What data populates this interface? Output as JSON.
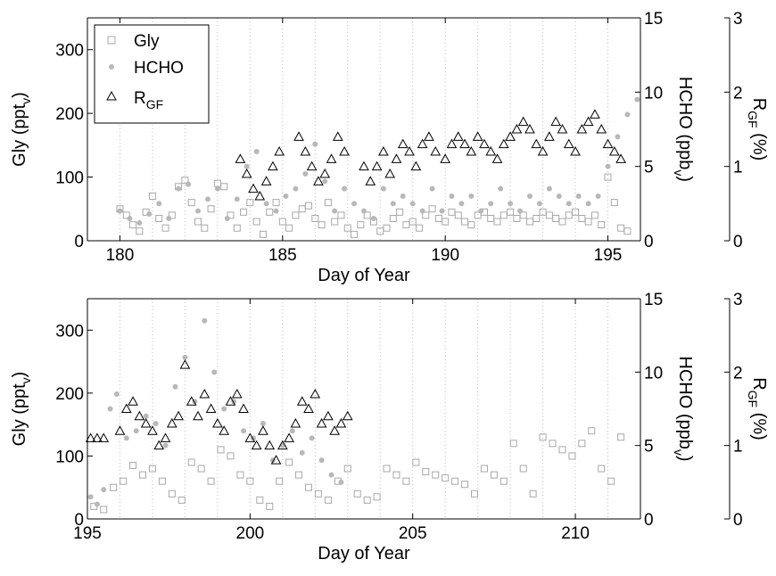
{
  "chart_data": [
    {
      "type": "scatter",
      "xlabel": "Day of Year",
      "ylabel_left": "Gly (ppt",
      "ylabel_left_sub": "v",
      "ylabel_left_close": ")",
      "ylabel_right1": "HCHO (ppb",
      "ylabel_right1_sub": "v",
      "ylabel_right1_close": ")",
      "ylabel_right2": "R",
      "ylabel_right2_sub": "GF",
      "ylabel_right2_close": " (%)",
      "xlim": [
        179,
        196
      ],
      "xticks": [
        "180",
        "185",
        "190",
        "195"
      ],
      "ylim_left": [
        0,
        350
      ],
      "yticks_left": [
        "0",
        "100",
        "200",
        "300"
      ],
      "ylim_right1": [
        0,
        15
      ],
      "yticks_right1": [
        "0",
        "5",
        "10",
        "15"
      ],
      "ylim_right2": [
        0,
        3
      ],
      "yticks_right2": [
        "0",
        "1",
        "2",
        "3"
      ],
      "dotted_day_lines": true,
      "legend": {
        "placement": "top-left",
        "entries": [
          {
            "label": "Gly",
            "marker": "square",
            "color": "#a8a8a8"
          },
          {
            "label": "HCHO",
            "marker": "dot",
            "color": "#b8b8b8"
          },
          {
            "label": "R",
            "label_sub": "GF",
            "marker": "triangle",
            "color": "#000000"
          }
        ]
      },
      "series": [
        {
          "name": "Gly",
          "axis": "left",
          "x": [
            180.0,
            180.2,
            180.4,
            180.6,
            180.8,
            181.0,
            181.2,
            181.4,
            181.6,
            181.8,
            182.0,
            182.2,
            182.4,
            182.6,
            182.8,
            183.0,
            183.2,
            183.4,
            183.6,
            183.8,
            184.0,
            184.2,
            184.4,
            184.6,
            184.8,
            185.0,
            185.2,
            185.4,
            185.6,
            185.8,
            186.0,
            186.2,
            186.4,
            186.6,
            186.8,
            187.0,
            187.2,
            187.4,
            187.6,
            187.8,
            188.0,
            188.2,
            188.4,
            188.6,
            188.8,
            189.0,
            189.2,
            189.4,
            189.6,
            189.8,
            190.0,
            190.2,
            190.4,
            190.6,
            190.8,
            191.0,
            191.2,
            191.4,
            191.6,
            191.8,
            192.0,
            192.2,
            192.4,
            192.6,
            192.8,
            193.0,
            193.2,
            193.4,
            193.6,
            193.8,
            194.0,
            194.2,
            194.4,
            194.6,
            194.8,
            195.0,
            195.2,
            195.4,
            195.6
          ],
          "y": [
            50,
            40,
            25,
            15,
            45,
            70,
            35,
            20,
            40,
            85,
            95,
            60,
            30,
            20,
            50,
            90,
            85,
            40,
            20,
            45,
            60,
            30,
            10,
            45,
            60,
            30,
            20,
            40,
            50,
            55,
            35,
            25,
            60,
            30,
            40,
            20,
            10,
            25,
            40,
            30,
            15,
            20,
            35,
            45,
            25,
            30,
            20,
            40,
            50,
            35,
            30,
            45,
            40,
            30,
            25,
            40,
            45,
            35,
            30,
            40,
            45,
            35,
            40,
            30,
            35,
            45,
            40,
            35,
            30,
            40,
            45,
            35,
            30,
            40,
            25,
            100,
            60,
            20,
            15
          ]
        },
        {
          "name": "HCHO",
          "axis": "right1",
          "x": [
            180.0,
            180.3,
            180.6,
            180.9,
            181.2,
            181.5,
            181.8,
            182.1,
            182.4,
            182.7,
            183.0,
            183.3,
            183.6,
            183.9,
            184.2,
            184.5,
            184.8,
            185.1,
            185.4,
            185.7,
            186.0,
            186.3,
            186.6,
            186.9,
            187.2,
            187.5,
            187.8,
            188.1,
            188.4,
            188.7,
            189.0,
            189.3,
            189.6,
            189.9,
            190.2,
            190.5,
            190.8,
            191.1,
            191.4,
            191.7,
            192.0,
            192.3,
            192.6,
            192.9,
            193.2,
            193.5,
            193.8,
            194.1,
            194.4,
            194.7,
            195.0,
            195.3,
            195.6,
            195.9
          ],
          "y": [
            2.0,
            1.5,
            1.2,
            1.8,
            2.5,
            1.5,
            3.5,
            3.8,
            2.0,
            2.8,
            3.5,
            1.5,
            2.8,
            5.0,
            6.0,
            2.5,
            2.0,
            3.0,
            3.5,
            4.5,
            6.5,
            4.0,
            2.0,
            3.5,
            2.5,
            2.0,
            1.5,
            3.5,
            2.5,
            3.0,
            2.5,
            2.0,
            3.5,
            2.0,
            3.0,
            2.5,
            3.0,
            2.0,
            2.5,
            3.5,
            2.5,
            2.0,
            3.0,
            2.5,
            3.5,
            3.0,
            2.5,
            3.0,
            2.5,
            3.0,
            5.0,
            7.0,
            8.5,
            9.5
          ]
        },
        {
          "name": "R",
          "axis": "right2",
          "x": [
            183.7,
            183.9,
            184.1,
            184.3,
            184.5,
            184.7,
            184.9,
            185.5,
            185.7,
            185.9,
            186.1,
            186.3,
            186.5,
            186.7,
            186.9,
            187.5,
            187.7,
            187.9,
            188.1,
            188.3,
            188.5,
            188.7,
            188.9,
            189.1,
            189.3,
            189.5,
            189.7,
            190.0,
            190.2,
            190.4,
            190.6,
            190.8,
            191.0,
            191.2,
            191.4,
            191.6,
            191.8,
            192.0,
            192.2,
            192.4,
            192.6,
            192.8,
            193.0,
            193.2,
            193.4,
            193.6,
            193.8,
            194.0,
            194.2,
            194.4,
            194.6,
            194.8,
            195.0,
            195.2,
            195.4
          ],
          "y": [
            1.1,
            0.9,
            0.7,
            0.6,
            0.8,
            1.0,
            1.2,
            1.4,
            1.2,
            1.0,
            0.8,
            0.9,
            1.1,
            1.4,
            1.2,
            1.0,
            0.8,
            1.0,
            1.2,
            0.9,
            1.1,
            1.3,
            1.2,
            1.0,
            1.3,
            1.4,
            1.2,
            1.1,
            1.3,
            1.4,
            1.3,
            1.2,
            1.4,
            1.3,
            1.2,
            1.1,
            1.3,
            1.4,
            1.5,
            1.6,
            1.5,
            1.3,
            1.2,
            1.4,
            1.6,
            1.5,
            1.3,
            1.2,
            1.5,
            1.6,
            1.7,
            1.5,
            1.3,
            1.2,
            1.1
          ]
        }
      ]
    },
    {
      "type": "scatter",
      "xlabel": "Day of Year",
      "ylabel_left": "Gly (ppt",
      "ylabel_left_sub": "v",
      "ylabel_left_close": ")",
      "ylabel_right1": "HCHO (ppb",
      "ylabel_right1_sub": "v",
      "ylabel_right1_close": ")",
      "ylabel_right2": "R",
      "ylabel_right2_sub": "GF",
      "ylabel_right2_close": " (%)",
      "xlim": [
        195,
        212
      ],
      "xticks": [
        "195",
        "200",
        "205",
        "210"
      ],
      "ylim_left": [
        0,
        350
      ],
      "yticks_left": [
        "0",
        "100",
        "200",
        "300"
      ],
      "ylim_right1": [
        0,
        15
      ],
      "yticks_right1": [
        "0",
        "5",
        "10",
        "15"
      ],
      "ylim_right2": [
        0,
        3
      ],
      "yticks_right2": [
        "0",
        "1",
        "2",
        "3"
      ],
      "dotted_day_lines": true,
      "series": [
        {
          "name": "Gly",
          "axis": "left",
          "x": [
            195.2,
            195.5,
            195.8,
            196.1,
            196.4,
            196.7,
            197.0,
            197.3,
            197.6,
            197.9,
            198.2,
            198.5,
            198.8,
            199.1,
            199.4,
            199.7,
            200.0,
            200.3,
            200.6,
            200.9,
            201.2,
            201.5,
            201.8,
            202.1,
            202.4,
            202.7,
            203.0,
            203.3,
            203.6,
            203.9,
            204.2,
            204.5,
            204.8,
            205.1,
            205.4,
            205.7,
            206.0,
            206.3,
            206.6,
            206.9,
            207.2,
            207.5,
            207.8,
            208.1,
            208.4,
            208.7,
            209.0,
            209.3,
            209.6,
            209.9,
            210.2,
            210.5,
            210.8,
            211.1,
            211.4
          ],
          "y": [
            20,
            15,
            50,
            60,
            85,
            70,
            80,
            60,
            40,
            30,
            90,
            80,
            60,
            110,
            100,
            70,
            60,
            30,
            20,
            60,
            90,
            70,
            50,
            40,
            30,
            60,
            80,
            40,
            30,
            35,
            80,
            70,
            60,
            90,
            75,
            70,
            65,
            60,
            55,
            40,
            80,
            70,
            60,
            120,
            80,
            40,
            130,
            120,
            110,
            100,
            120,
            140,
            80,
            60,
            130
          ]
        },
        {
          "name": "HCHO",
          "axis": "right1",
          "x": [
            195.1,
            195.3,
            195.5,
            195.7,
            195.9,
            196.2,
            196.5,
            196.8,
            197.1,
            197.4,
            197.7,
            198.0,
            198.3,
            198.6,
            198.9,
            199.2,
            199.5,
            199.8,
            200.1,
            200.4,
            200.7,
            201.0,
            201.3,
            201.6,
            201.9,
            202.2,
            202.5,
            202.8
          ],
          "y": [
            1.5,
            1.0,
            2.0,
            7.5,
            8.5,
            5.5,
            6.0,
            7.0,
            6.5,
            5.0,
            9.0,
            11.0,
            8.0,
            13.5,
            10.0,
            7.5,
            8.0,
            6.0,
            5.5,
            6.5,
            4.0,
            5.0,
            6.0,
            4.5,
            5.5,
            4.0,
            3.0,
            2.5
          ]
        },
        {
          "name": "R",
          "axis": "right2",
          "x": [
            195.1,
            195.3,
            195.5,
            196.0,
            196.2,
            196.4,
            196.6,
            196.8,
            197.0,
            197.2,
            197.4,
            197.6,
            197.8,
            198.0,
            198.2,
            198.4,
            198.6,
            198.8,
            199.0,
            199.2,
            199.4,
            199.6,
            199.8,
            200.0,
            200.2,
            200.4,
            200.6,
            200.8,
            201.0,
            201.2,
            201.4,
            201.6,
            201.8,
            202.0,
            202.2,
            202.4,
            202.6,
            202.8,
            203.0
          ],
          "y": [
            1.1,
            1.1,
            1.1,
            1.2,
            1.5,
            1.6,
            1.4,
            1.3,
            1.2,
            1.0,
            1.1,
            1.3,
            1.4,
            2.1,
            1.6,
            1.4,
            1.7,
            1.5,
            1.3,
            1.2,
            1.6,
            1.7,
            1.5,
            1.1,
            1.0,
            1.2,
            1.0,
            0.8,
            1.0,
            1.1,
            1.3,
            1.6,
            1.5,
            1.7,
            1.3,
            1.4,
            1.2,
            1.3,
            1.4
          ]
        }
      ]
    }
  ]
}
